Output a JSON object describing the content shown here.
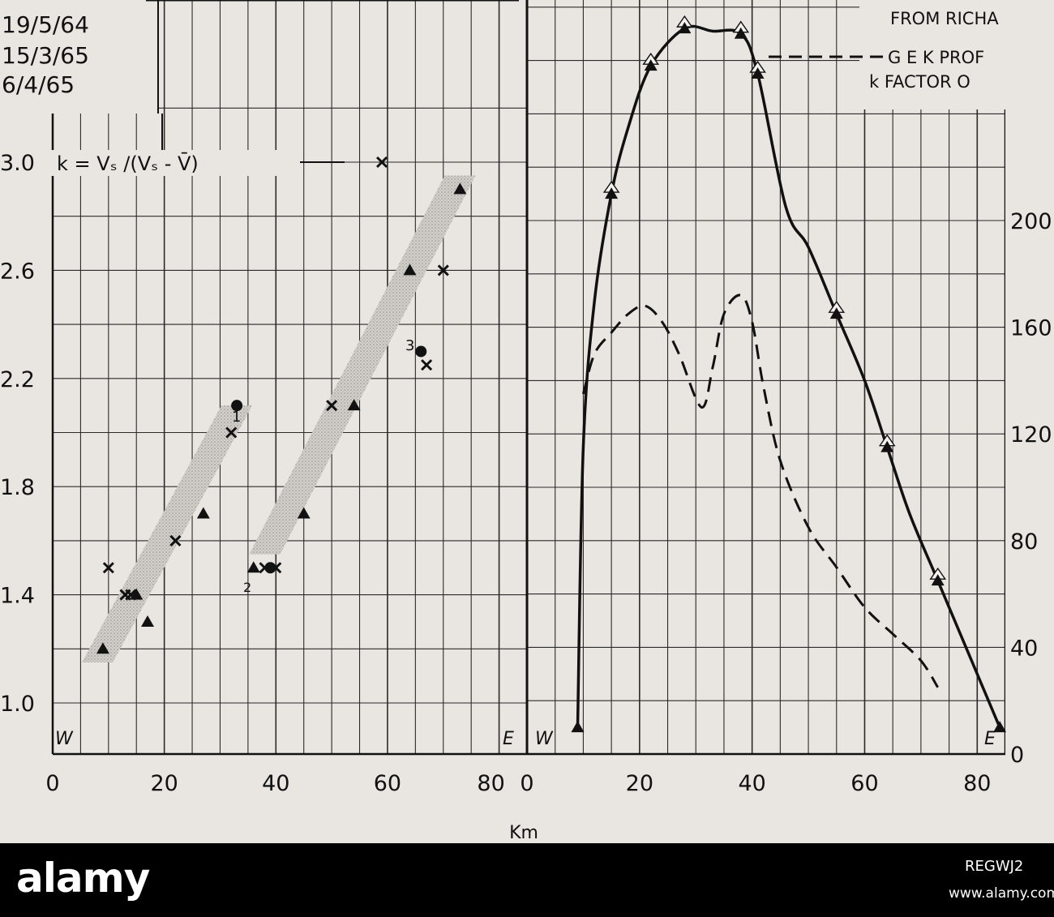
{
  "header": {
    "dates": [
      "19/5/64",
      "15/3/65",
      "6/4/65"
    ],
    "legend_solid": "FROM RICHA",
    "legend_dashed": "G E K PROF",
    "legend_k": "k FACTOR O"
  },
  "left_panel": {
    "formula": "k = Vₛ /(Vₛ - V̄)",
    "west_label": "W",
    "east_label": "E",
    "point_labels": [
      "1",
      "2",
      "3"
    ]
  },
  "right_panel": {
    "west_label": "W",
    "east_label": "E"
  },
  "xlabel": "Km",
  "chart_data": [
    {
      "type": "scatter",
      "xlabel": "Km",
      "ylabel": "",
      "xlim": [
        0,
        85
      ],
      "ylim": [
        0.8,
        3.0
      ],
      "x_ticks": [
        "0",
        "20",
        "40",
        "60",
        "80"
      ],
      "y_ticks": [
        "1.0",
        "1.4",
        "1.8",
        "2.2",
        "2.6",
        "3.0"
      ],
      "grid": true,
      "series": [
        {
          "marker": "x",
          "points": [
            [
              10,
              1.5
            ],
            [
              13,
              1.4
            ],
            [
              14,
              1.4
            ],
            [
              22,
              1.6
            ],
            [
              32,
              2.0
            ],
            [
              38,
              1.5
            ],
            [
              40,
              1.5
            ],
            [
              50,
              2.1
            ],
            [
              67,
              2.25
            ],
            [
              70,
              2.6
            ],
            [
              59,
              3.0
            ]
          ]
        },
        {
          "marker": "triangle",
          "points": [
            [
              9,
              1.2
            ],
            [
              15,
              1.4
            ],
            [
              17,
              1.3
            ],
            [
              27,
              1.7
            ],
            [
              36,
              1.5
            ],
            [
              45,
              1.7
            ],
            [
              54,
              2.1
            ],
            [
              64,
              2.6
            ],
            [
              73,
              2.9
            ]
          ]
        },
        {
          "marker": "dot",
          "points": [
            [
              33,
              2.1
            ],
            [
              39,
              1.5
            ],
            [
              66,
              2.3
            ]
          ]
        }
      ],
      "bands": [
        {
          "from": [
            8,
            1.15
          ],
          "to": [
            33,
            2.1
          ]
        },
        {
          "from": [
            38,
            1.55
          ],
          "to": [
            73,
            2.95
          ]
        }
      ]
    },
    {
      "type": "line",
      "xlabel": "Km",
      "ylabel": "",
      "xlim": [
        0,
        85
      ],
      "ylim": [
        0,
        270
      ],
      "x_ticks": [
        "0",
        "20",
        "40",
        "60",
        "80"
      ],
      "y_ticks": [
        "0",
        "40",
        "80",
        "120",
        "160",
        "200"
      ],
      "grid": true,
      "series": [
        {
          "style": "solid",
          "x": [
            9,
            10,
            12,
            15,
            18,
            22,
            28,
            33,
            38,
            41,
            46,
            50,
            55,
            60,
            64,
            68,
            73,
            79,
            84
          ],
          "y": [
            10,
            115,
            170,
            210,
            235,
            258,
            272,
            271,
            270,
            255,
            205,
            190,
            165,
            140,
            115,
            90,
            65,
            35,
            10
          ]
        },
        {
          "style": "dashed",
          "x": [
            10,
            12,
            15,
            18,
            21,
            24,
            27,
            31,
            33,
            35,
            38,
            40,
            42,
            45,
            50,
            55,
            60,
            65,
            70,
            73
          ],
          "y": [
            135,
            150,
            158,
            165,
            168,
            162,
            150,
            130,
            145,
            165,
            172,
            162,
            138,
            110,
            85,
            70,
            55,
            45,
            35,
            25
          ]
        }
      ]
    }
  ]
}
